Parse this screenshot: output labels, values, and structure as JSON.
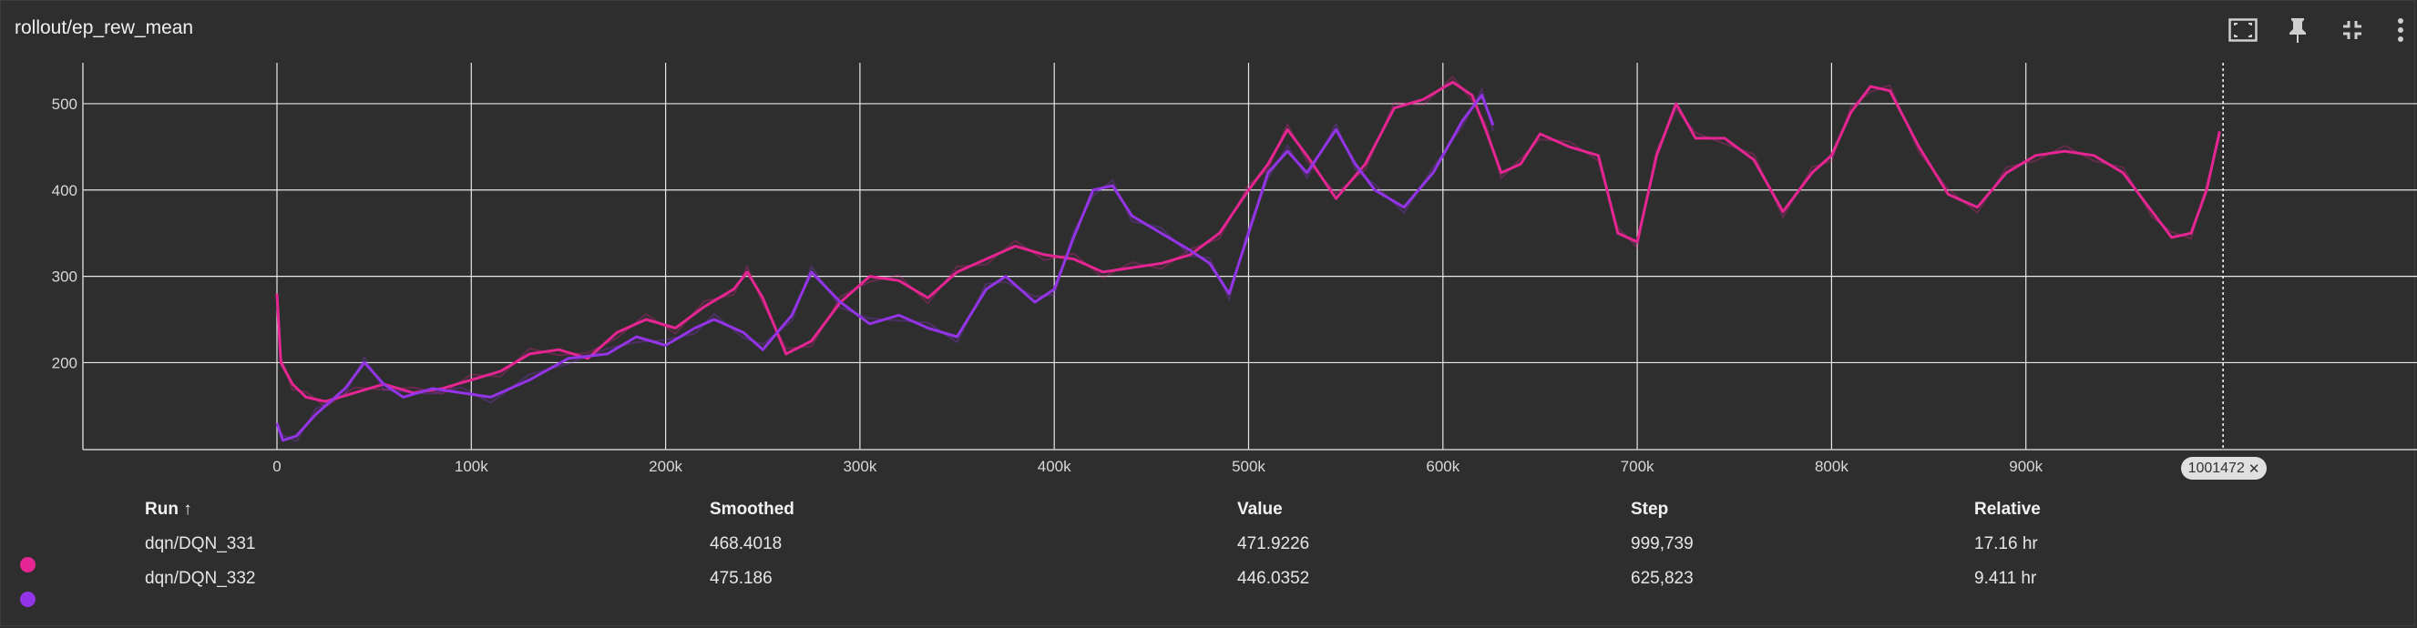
{
  "card": {
    "title": "rollout/ep_rew_mean"
  },
  "toolbar": {
    "icons": [
      "fit-domain-icon",
      "pin-icon",
      "fullscreen-exit-icon",
      "more-vert-icon"
    ]
  },
  "chart_data": {
    "type": "line",
    "xlim": [
      -100000,
      1100000
    ],
    "ylim": [
      95,
      550
    ],
    "yticks": [
      {
        "value": 200,
        "label": "200"
      },
      {
        "value": 300,
        "label": "300"
      },
      {
        "value": 400,
        "label": "400"
      },
      {
        "value": 500,
        "label": "500"
      }
    ],
    "xticks": [
      {
        "value": 0,
        "label": "0"
      },
      {
        "value": 100000,
        "label": "100k"
      },
      {
        "value": 200000,
        "label": "200k"
      },
      {
        "value": 300000,
        "label": "300k"
      },
      {
        "value": 400000,
        "label": "400k"
      },
      {
        "value": 500000,
        "label": "500k"
      },
      {
        "value": 600000,
        "label": "600k"
      },
      {
        "value": 700000,
        "label": "700k"
      },
      {
        "value": 800000,
        "label": "800k"
      },
      {
        "value": 900000,
        "label": "900k"
      }
    ],
    "grid": true,
    "cursor_step": 1001472,
    "cursor_label": "1001472",
    "series": [
      {
        "name": "dqn/DQN_331",
        "color": "#e52592",
        "x": [
          0,
          2000,
          8000,
          15000,
          25000,
          40000,
          55000,
          70000,
          85000,
          100000,
          115000,
          130000,
          145000,
          160000,
          175000,
          190000,
          205000,
          220000,
          235000,
          242000,
          250000,
          262000,
          275000,
          290000,
          305000,
          320000,
          335000,
          350000,
          365000,
          380000,
          395000,
          410000,
          425000,
          440000,
          455000,
          470000,
          485000,
          500000,
          510000,
          520000,
          530000,
          545000,
          560000,
          575000,
          590000,
          605000,
          615000,
          622000,
          630000,
          640000,
          650000,
          665000,
          680000,
          690000,
          700000,
          710000,
          720000,
          730000,
          745000,
          760000,
          775000,
          790000,
          800000,
          810000,
          820000,
          830000,
          845000,
          860000,
          875000,
          890000,
          905000,
          920000,
          935000,
          950000,
          965000,
          975000,
          985000,
          993000,
          999739
        ],
        "values": [
          280,
          200,
          175,
          160,
          155,
          165,
          175,
          165,
          170,
          180,
          190,
          210,
          215,
          205,
          235,
          250,
          240,
          265,
          285,
          305,
          275,
          210,
          225,
          270,
          300,
          295,
          275,
          305,
          320,
          335,
          325,
          320,
          305,
          310,
          315,
          325,
          350,
          400,
          430,
          470,
          440,
          390,
          430,
          495,
          505,
          525,
          510,
          470,
          420,
          430,
          465,
          450,
          440,
          350,
          340,
          440,
          500,
          460,
          460,
          435,
          375,
          420,
          440,
          490,
          520,
          515,
          450,
          395,
          380,
          420,
          440,
          445,
          440,
          420,
          375,
          345,
          350,
          400,
          468
        ]
      },
      {
        "name": "dqn/DQN_332",
        "color": "#9334e6",
        "x": [
          0,
          3000,
          10000,
          20000,
          35000,
          45000,
          55000,
          65000,
          80000,
          95000,
          110000,
          130000,
          150000,
          170000,
          185000,
          200000,
          215000,
          225000,
          240000,
          250000,
          265000,
          275000,
          290000,
          305000,
          320000,
          335000,
          350000,
          365000,
          375000,
          390000,
          400000,
          410000,
          420000,
          430000,
          440000,
          455000,
          470000,
          480000,
          490000,
          500000,
          510000,
          520000,
          530000,
          545000,
          555000,
          565000,
          580000,
          595000,
          610000,
          620000,
          625823
        ],
        "values": [
          130,
          110,
          115,
          140,
          170,
          200,
          175,
          160,
          170,
          165,
          160,
          180,
          205,
          210,
          230,
          220,
          240,
          250,
          235,
          215,
          255,
          305,
          270,
          245,
          255,
          240,
          230,
          285,
          300,
          270,
          285,
          345,
          400,
          405,
          370,
          350,
          330,
          315,
          280,
          350,
          420,
          445,
          420,
          470,
          430,
          400,
          380,
          420,
          480,
          510,
          475
        ]
      }
    ]
  },
  "table": {
    "headers": {
      "run": "Run ↑",
      "smoothed": "Smoothed",
      "value": "Value",
      "step": "Step",
      "relative": "Relative"
    },
    "rows": [
      {
        "color": "#e52592",
        "run": "dqn/DQN_331",
        "smoothed": "468.4018",
        "value": "471.9226",
        "step": "999,739",
        "relative": "17.16 hr"
      },
      {
        "color": "#9334e6",
        "run": "dqn/DQN_332",
        "smoothed": "475.186",
        "value": "446.0352",
        "step": "625,823",
        "relative": "9.411 hr"
      }
    ]
  }
}
